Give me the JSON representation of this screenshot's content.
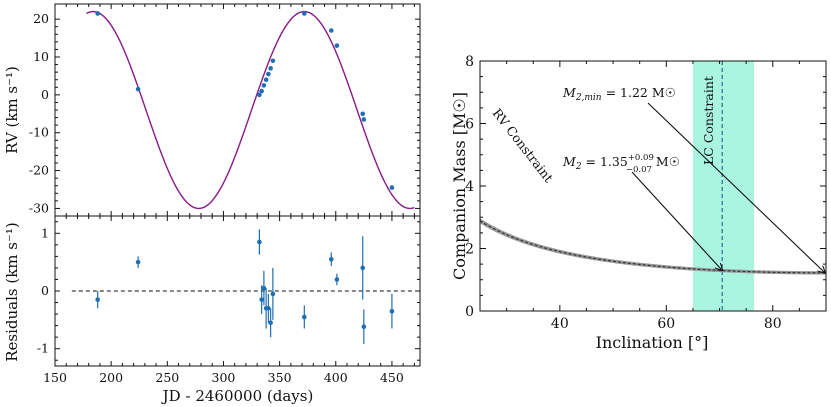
{
  "chart_data": [
    {
      "type": "scatter",
      "panel": "rv-top",
      "xlim": [
        150,
        475
      ],
      "ylim": [
        -32,
        24
      ],
      "xlabel": "",
      "ylabel": "RV (km s⁻¹)",
      "yticks": [
        20,
        10,
        0,
        -10,
        -20,
        -30
      ],
      "grid": false,
      "model": {
        "name": "RV model",
        "color": "#8b1a89",
        "gamma": -4.0,
        "K": 26.0,
        "period": 188.0,
        "t_max": 184.0,
        "x_start": 178,
        "x_end": 470
      },
      "series": [
        {
          "name": "RV data",
          "color": "#1f6fb5",
          "x": [
            188,
            224,
            332,
            334,
            336,
            338,
            340,
            342,
            344,
            372,
            396,
            401,
            424,
            425,
            450
          ],
          "y": [
            21.5,
            1.5,
            0.0,
            1.0,
            2.5,
            4.0,
            5.5,
            7.0,
            9.0,
            21.5,
            17.0,
            13.0,
            -5.0,
            -6.5,
            -24.5
          ]
        }
      ]
    },
    {
      "type": "scatter",
      "panel": "residuals-bottom",
      "xlim": [
        150,
        475
      ],
      "ylim": [
        -1.3,
        1.3
      ],
      "xlabel": "JD - 2460000 (days)",
      "ylabel": "Residuals (km s⁻¹)",
      "xticks": [
        150,
        200,
        250,
        300,
        350,
        400,
        450
      ],
      "yticks": [
        1,
        0,
        -1
      ],
      "zero_line": {
        "value": 0,
        "x_start": 165,
        "x_end": 470,
        "style": "dashed"
      },
      "series": [
        {
          "name": "Residuals",
          "color": "#1f6fb5",
          "x": [
            188,
            224,
            332,
            334,
            336,
            338,
            340,
            342,
            344,
            372,
            396,
            401,
            424,
            425,
            450
          ],
          "y": [
            -0.15,
            0.5,
            0.85,
            -0.15,
            0.05,
            -0.3,
            -0.3,
            -0.55,
            -0.05,
            -0.45,
            0.55,
            0.2,
            0.4,
            -0.62,
            -0.35
          ],
          "err": [
            0.15,
            0.1,
            0.22,
            0.25,
            0.3,
            0.35,
            0.25,
            0.25,
            0.45,
            0.2,
            0.12,
            0.1,
            0.55,
            0.3,
            0.3
          ]
        }
      ]
    },
    {
      "type": "line",
      "panel": "companion-mass",
      "xlim": [
        25,
        90
      ],
      "ylim": [
        0,
        8
      ],
      "xlabel": "Inclination [°]",
      "ylabel": "Companion Mass [M☉]",
      "xticks": [
        40,
        60,
        80
      ],
      "yticks": [
        0,
        2,
        4,
        6,
        8
      ],
      "curve": {
        "name": "RV Constraint",
        "color": "#333333",
        "m_min": 1.22,
        "x_start": 25,
        "x_end": 90
      },
      "band": {
        "name": "LC Constraint",
        "x_low": 65,
        "x_high": 76.5,
        "x_center": 70.5,
        "color": "#aaf5df"
      },
      "annotations": [
        {
          "text_main": "M",
          "text_sub": "2,min",
          "text_rest": " = 1.22 M☉",
          "target_x": 90,
          "target_y": 1.22
        },
        {
          "text_main": "M",
          "text_sub": "2",
          "text_rest": " = 1.35",
          "text_sup": "+0.09",
          "text_low": "−0.07",
          "text_tail": " M☉",
          "target_x": 70.5,
          "target_y": 1.3
        }
      ]
    }
  ],
  "labels": {
    "rv_label": "RV (km s⁻¹)",
    "res_label": "Residuals (km s⁻¹)",
    "jd_label": "JD - 2460000 (days)",
    "mass_label": "Companion Mass [M☉]",
    "incl_label": "Inclination [°]",
    "rv_constraint_l1": "RV Constraint",
    "lc_constraint": "LC Constraint"
  }
}
